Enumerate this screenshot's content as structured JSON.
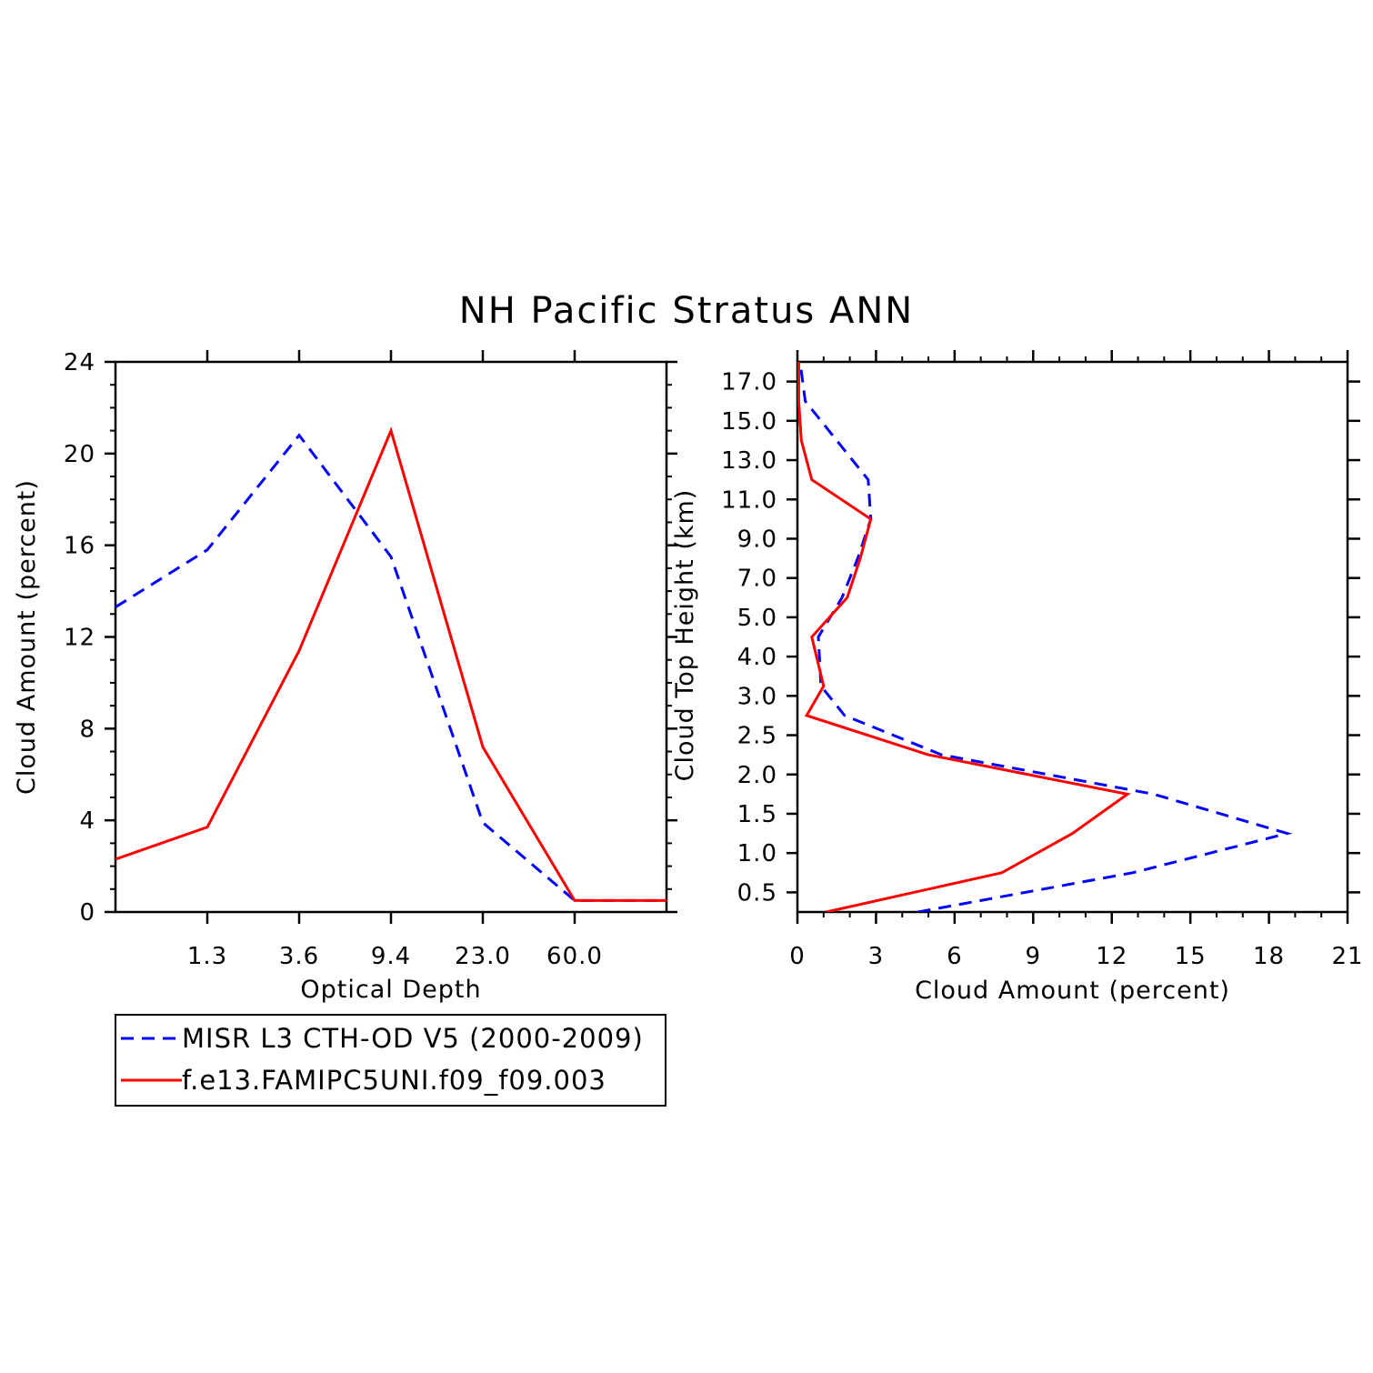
{
  "title": "NH Pacific Stratus ANN",
  "colors": {
    "obs": "#0000ff",
    "model": "#ff0000",
    "axis": "#000000"
  },
  "legend": {
    "entries": [
      {
        "label": "MISR L3 CTH-OD V5 (2000-2009)",
        "color": "#0000ff",
        "dash": true
      },
      {
        "label": "f.e13.FAMIPC5UNI.f09_f09.003",
        "color": "#ff0000",
        "dash": false
      }
    ]
  },
  "chart_data": [
    {
      "type": "line",
      "xlabel": "Optical Depth",
      "ylabel": "Cloud Amount (percent)",
      "x_categories": [
        "1.3",
        "3.6",
        "9.4",
        "23.0",
        "60.0"
      ],
      "x": [
        0.5,
        1.5,
        2.5,
        3.5,
        4.5,
        5.5,
        6.5
      ],
      "xlim": [
        0.5,
        6.5
      ],
      "ylim": [
        0,
        24
      ],
      "yticks": [
        "0",
        "4",
        "8",
        "12",
        "16",
        "20",
        "24"
      ],
      "series": [
        {
          "name": "MISR L3 CTH-OD V5 (2000-2009)",
          "values": [
            13.3,
            15.8,
            20.8,
            15.5,
            3.9,
            0.5,
            0.5
          ]
        },
        {
          "name": "f.e13.FAMIPC5UNI.f09_f09.003",
          "values": [
            2.3,
            3.7,
            11.4,
            21.0,
            7.2,
            0.5,
            0.5
          ]
        }
      ]
    },
    {
      "type": "line",
      "xlabel": "Cloud Amount (percent)",
      "ylabel": "Cloud Top Height (km)",
      "xlim": [
        0,
        21
      ],
      "xticks": [
        "0",
        "3",
        "6",
        "9",
        "12",
        "15",
        "18",
        "21"
      ],
      "y_categories": [
        "0.5",
        "1.0",
        "1.5",
        "2.0",
        "2.5",
        "3.0",
        "4.0",
        "5.0",
        "7.0",
        "9.0",
        "11.0",
        "13.0",
        "15.0",
        "17.0"
      ],
      "series": [
        {
          "name": "MISR L3 CTH-OD V5 (2000-2009)",
          "points": [
            [
              4.6,
              0.25
            ],
            [
              12.8,
              0.75
            ],
            [
              18.7,
              1.25
            ],
            [
              13.6,
              1.75
            ],
            [
              5.5,
              2.25
            ],
            [
              1.8,
              2.75
            ],
            [
              0.9,
              3.25
            ],
            [
              0.8,
              4.5
            ],
            [
              1.7,
              6.0
            ],
            [
              2.3,
              8.0
            ],
            [
              2.8,
              10.0
            ],
            [
              2.7,
              12.0
            ],
            [
              1.5,
              14.0
            ],
            [
              0.3,
              16.0
            ],
            [
              0.1,
              18.0
            ]
          ]
        },
        {
          "name": "f.e13.FAMIPC5UNI.f09_f09.003",
          "points": [
            [
              1.1,
              0.25
            ],
            [
              7.8,
              0.75
            ],
            [
              10.5,
              1.25
            ],
            [
              12.6,
              1.75
            ],
            [
              5.0,
              2.25
            ],
            [
              0.35,
              2.75
            ],
            [
              1.0,
              3.25
            ],
            [
              0.55,
              4.5
            ],
            [
              1.9,
              6.0
            ],
            [
              2.4,
              8.0
            ],
            [
              2.8,
              10.0
            ],
            [
              0.55,
              12.0
            ],
            [
              0.15,
              14.0
            ],
            [
              0.05,
              16.0
            ],
            [
              0.05,
              18.0
            ]
          ]
        }
      ]
    }
  ]
}
